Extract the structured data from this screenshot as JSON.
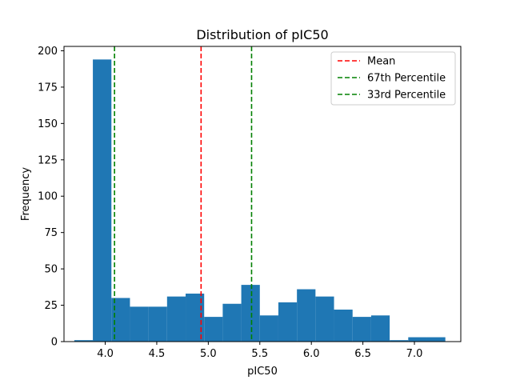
{
  "chart_data": {
    "type": "bar",
    "title": "Distribution of pIC50",
    "xlabel": "pIC50",
    "ylabel": "Frequency",
    "xlim": [
      3.6,
      7.45
    ],
    "ylim": [
      0,
      203
    ],
    "xticks": [
      4.0,
      4.5,
      5.0,
      5.5,
      6.0,
      6.5,
      7.0
    ],
    "xtick_labels": [
      "4.0",
      "4.5",
      "5.0",
      "5.5",
      "6.0",
      "6.5",
      "7.0"
    ],
    "yticks": [
      0,
      25,
      50,
      75,
      100,
      125,
      150,
      175,
      200
    ],
    "ytick_labels": [
      "0",
      "25",
      "50",
      "75",
      "100",
      "125",
      "150",
      "175",
      "200"
    ],
    "bins": [
      {
        "x0": 3.7,
        "x1": 3.88,
        "count": 1
      },
      {
        "x0": 3.88,
        "x1": 4.06,
        "count": 194
      },
      {
        "x0": 4.06,
        "x1": 4.24,
        "count": 30
      },
      {
        "x0": 4.24,
        "x1": 4.42,
        "count": 24
      },
      {
        "x0": 4.42,
        "x1": 4.6,
        "count": 24
      },
      {
        "x0": 4.6,
        "x1": 4.78,
        "count": 31
      },
      {
        "x0": 4.78,
        "x1": 4.96,
        "count": 33
      },
      {
        "x0": 4.96,
        "x1": 5.14,
        "count": 17
      },
      {
        "x0": 5.14,
        "x1": 5.32,
        "count": 26
      },
      {
        "x0": 5.32,
        "x1": 5.5,
        "count": 39
      },
      {
        "x0": 5.5,
        "x1": 5.68,
        "count": 18
      },
      {
        "x0": 5.68,
        "x1": 5.86,
        "count": 27
      },
      {
        "x0": 5.86,
        "x1": 6.04,
        "count": 36
      },
      {
        "x0": 6.04,
        "x1": 6.22,
        "count": 31
      },
      {
        "x0": 6.22,
        "x1": 6.4,
        "count": 22
      },
      {
        "x0": 6.4,
        "x1": 6.58,
        "count": 17
      },
      {
        "x0": 6.58,
        "x1": 6.76,
        "count": 18
      },
      {
        "x0": 6.76,
        "x1": 6.94,
        "count": 1
      },
      {
        "x0": 6.94,
        "x1": 7.12,
        "count": 3
      },
      {
        "x0": 7.12,
        "x1": 7.3,
        "count": 3
      }
    ],
    "bar_color": "#1f77b4",
    "vlines": [
      {
        "name": "Mean",
        "x": 4.93,
        "color": "#ff0000"
      },
      {
        "name": "67th Percentile",
        "x": 5.42,
        "color": "#008000"
      },
      {
        "name": "33rd Percentile",
        "x": 4.09,
        "color": "#008000"
      }
    ],
    "legend_position": "upper right",
    "grid": false
  }
}
